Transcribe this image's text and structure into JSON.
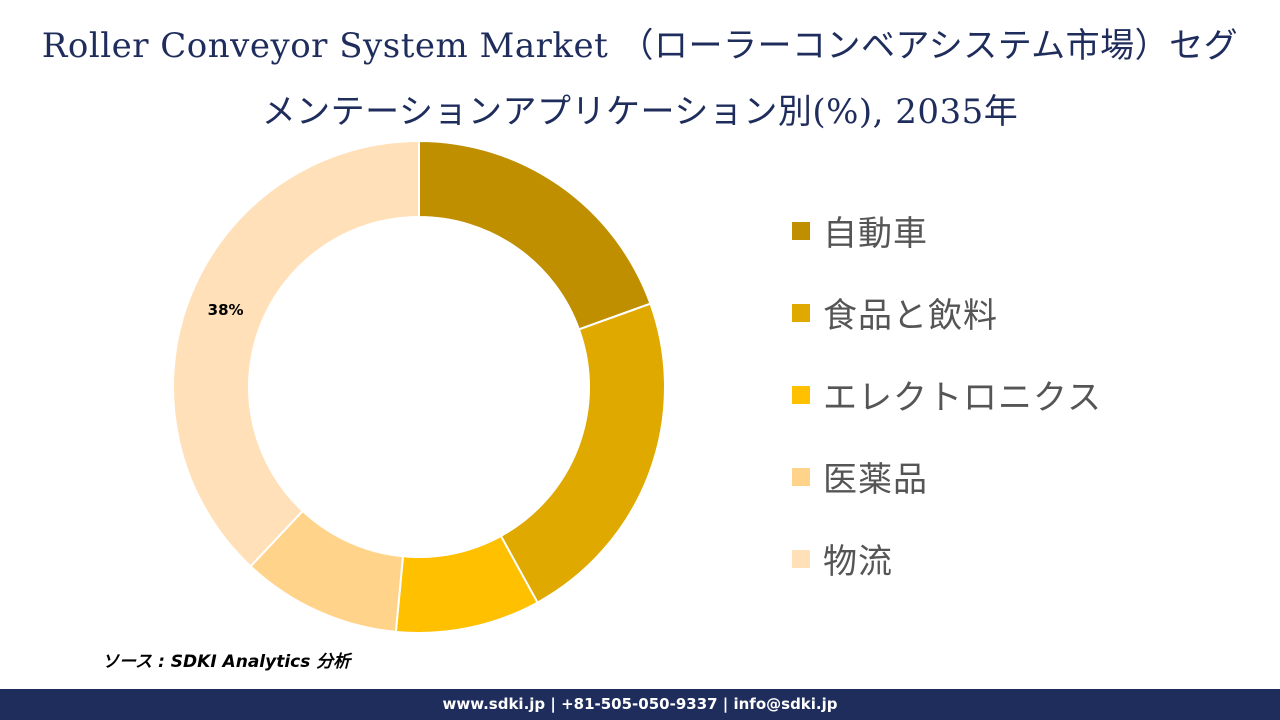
{
  "header": {
    "title_line1": "Roller Conveyor System Market （ローラーコンベアシステム市場）セグ",
    "title_line2": "メンテーションアプリケーション別(%), 2035年"
  },
  "chart_data": {
    "type": "pie",
    "variant": "donut",
    "categories": [
      "自動車",
      "食品と飲料",
      "エレクトロニクス",
      "医薬品",
      "物流"
    ],
    "values": [
      19.5,
      22.5,
      9.5,
      10.5,
      38
    ],
    "data_labels": [
      "",
      "",
      "",
      "",
      "38%"
    ],
    "colors": [
      "#bf8f00",
      "#dfa900",
      "#ffc000",
      "#ffd38a",
      "#ffe0b8"
    ],
    "start_angle_deg": 0,
    "direction": "clockwise",
    "legend_position": "right"
  },
  "source": {
    "text": "ソース : SDKI Analytics 分析"
  },
  "footer": {
    "text": "www.sdki.jp | +81-505-050-9337 | info@sdki.jp"
  }
}
